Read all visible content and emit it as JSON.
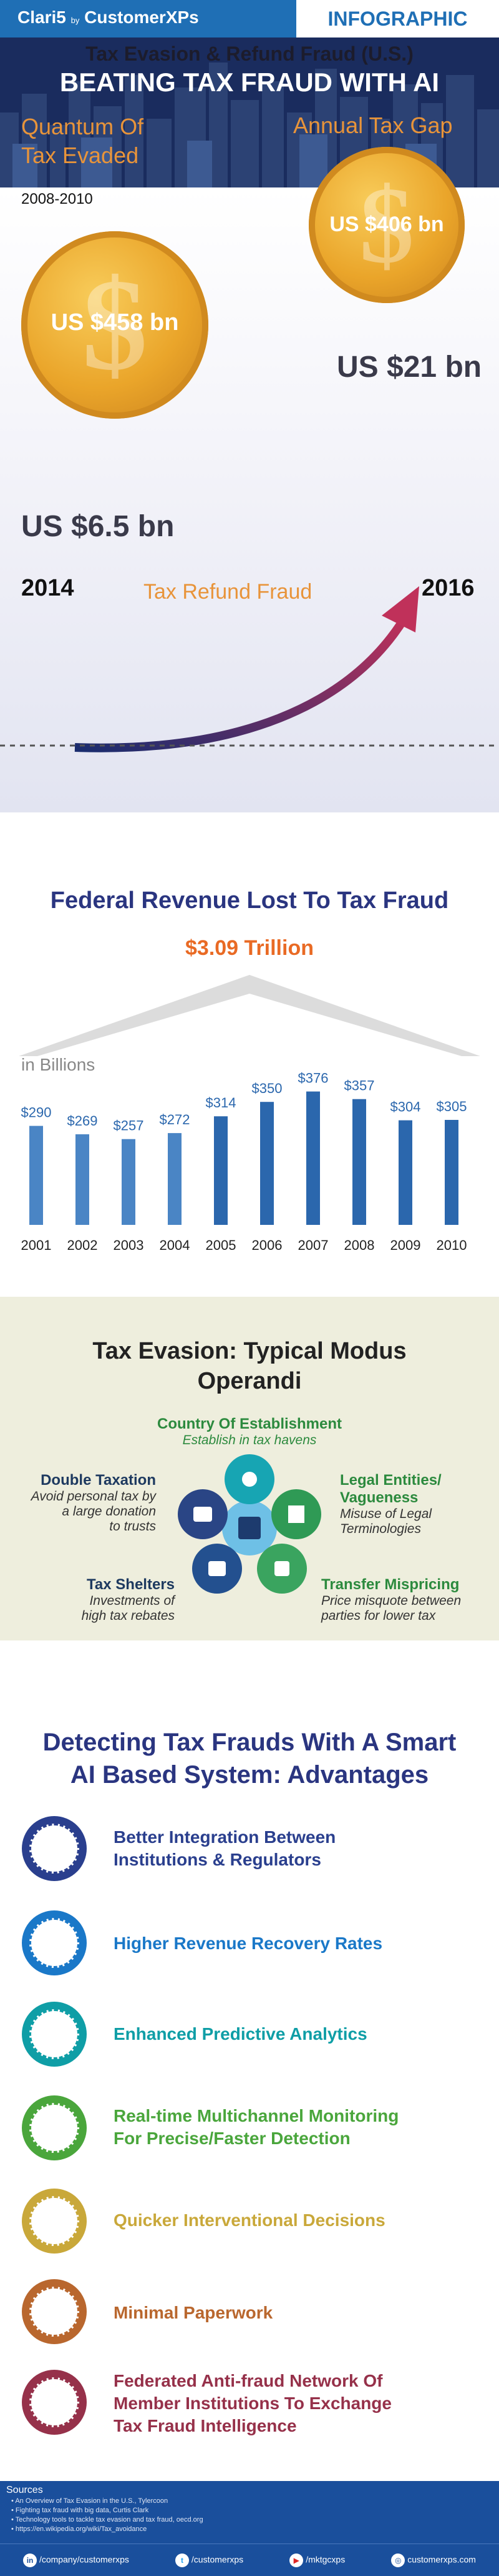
{
  "header": {
    "brand_name": "Clari5",
    "brand_by": "by",
    "brand_partner": "CustomerXPs",
    "tag": "INFOGRAPHIC"
  },
  "hero": {
    "title": "BEATING TAX FRAUD WITH AI"
  },
  "section1": {
    "title": "Tax Evasion & Refund Fraud  (U.S.)",
    "quantum_line1": "Quantum Of",
    "quantum_line2": "Tax Evaded",
    "period": "2008-2010",
    "quantum_value": "US $458 bn",
    "gap_title": "Annual Tax Gap",
    "gap_value": "US $406 bn",
    "refund_start_value": "US $6.5 bn",
    "refund_end_value": "US $21 bn",
    "refund_start_year": "2014",
    "refund_end_year": "2016",
    "refund_label": "Tax Refund Fraud"
  },
  "section2": {
    "title": "Federal Revenue Lost To Tax Fraud",
    "total": "$3.09 Trillion",
    "unit_label": "in Billions",
    "bar_color": "#2b67ad",
    "bar_light_color": "#4a85c5",
    "years": [
      "2001",
      "2002",
      "2003",
      "2004",
      "2005",
      "2006",
      "2007",
      "2008",
      "2009",
      "2010"
    ],
    "values": [
      290,
      269,
      257,
      272,
      314,
      350,
      376,
      357,
      304,
      305
    ],
    "value_labels": [
      "$290",
      "$269",
      "$257",
      "$272",
      "$314",
      "$350",
      "$376",
      "$357",
      "$304",
      "$305"
    ]
  },
  "section3": {
    "title_line1": "Tax Evasion: Typical Modus",
    "title_line2": "Operandi",
    "items": {
      "establishment": {
        "title": "Country Of Establishment",
        "sub": "Establish in tax havens"
      },
      "double_tax": {
        "title": "Double Taxation",
        "sub1": "Avoid personal tax by",
        "sub2": "a large donation",
        "sub3": "to trusts"
      },
      "legal": {
        "title1": "Legal Entities/",
        "title2": "Vagueness",
        "sub1": "Misuse of Legal",
        "sub2": "Terminologies"
      },
      "shelters": {
        "title": "Tax Shelters",
        "sub1": "Investments of",
        "sub2": "high tax rebates"
      },
      "mispricing": {
        "title": "Transfer Mispricing",
        "sub1": "Price misquote between",
        "sub2": "parties for lower tax"
      }
    }
  },
  "section4": {
    "title_line1": "Detecting Tax Frauds With A Smart",
    "title_line2": "AI Based System: Advantages",
    "advantages": [
      {
        "line1": "Better Integration Between",
        "line2": "Institutions & Regulators",
        "color": "#2a3f8e",
        "icon": "network-icon"
      },
      {
        "line1": "Higher Revenue Recovery Rates",
        "line2": "",
        "color": "#1a78c8",
        "icon": "recovery-icon"
      },
      {
        "line1": "Enhanced Predictive Analytics",
        "line2": "",
        "color": "#0f9ea6",
        "icon": "analytics-icon"
      },
      {
        "line1": "Real-time Multichannel Monitoring",
        "line2": "For Precise/Faster  Detection",
        "color": "#4aa63c",
        "icon": "monitoring-icon"
      },
      {
        "line1": "Quicker Interventional Decisions",
        "line2": "",
        "color": "#c9a83a",
        "icon": "decision-icon"
      },
      {
        "line1": "Minimal Paperwork",
        "line2": "",
        "color": "#b9672e",
        "icon": "paperwork-icon"
      },
      {
        "line1": "Federated Anti-fraud Network Of",
        "line2": "Member Institutions To Exchange",
        "line3": "Tax Fraud Intelligence",
        "color": "#96314a",
        "icon": "federation-icon"
      }
    ]
  },
  "sources": {
    "title": "Sources",
    "items": [
      "An Overview of Tax Evasion in the U.S., Tylercoon",
      "Fighting tax fraud with big data, Curtis Clark",
      "Technology tools to tackle tax evasion and tax fraud, oecd.org",
      "https://en.wikipedia.org/wiki/Tax_avoidance"
    ]
  },
  "footer": {
    "linkedin": "/company/customerxps",
    "twitter": "/customerxps",
    "youtube": "/mktgcxps",
    "website": "customerxps.com"
  }
}
